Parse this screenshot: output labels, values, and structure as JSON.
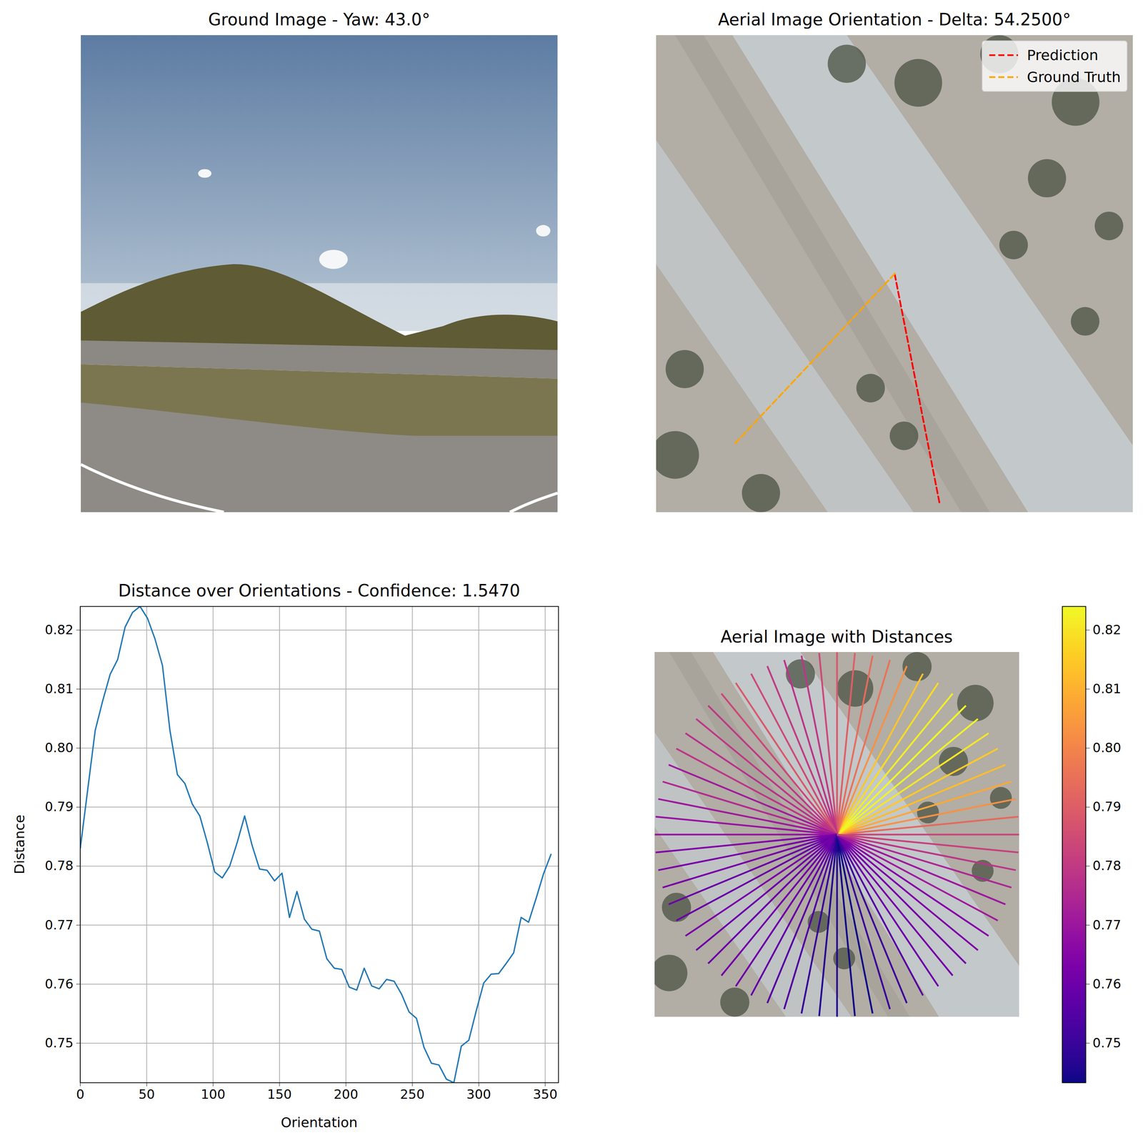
{
  "chart_data": [
    {
      "type": "image",
      "title": "Ground Image - Yaw: 43.0°",
      "tick_labels": false
    },
    {
      "type": "image",
      "title": "Aerial Image Orientation - Delta: 54.2500°",
      "tick_labels": false,
      "xlim": [
        0,
        1
      ],
      "ylim": [
        1,
        0
      ],
      "legend": "upper right",
      "series": [
        {
          "name": "Prediction",
          "color": "red",
          "line_style": "dashed",
          "x": [
            0.5,
            0.595
          ],
          "y": [
            0.5,
            0.985
          ]
        },
        {
          "name": "Ground Truth",
          "color": "orange",
          "line_style": "dashed",
          "x": [
            0.5,
            0.164
          ],
          "y": [
            0.5,
            0.857
          ]
        }
      ]
    },
    {
      "type": "line",
      "title": "Distance over Orientations - Confidence: 1.5470",
      "x_label": "Orientation",
      "y_label": "Distance",
      "color": "#1f77b4",
      "grid": true,
      "x": [
        0,
        5.625,
        11.25,
        16.875,
        22.5,
        28.125,
        33.75,
        39.375,
        45,
        50.625,
        56.25,
        61.875,
        67.5,
        73.125,
        78.75,
        84.375,
        90,
        95.625,
        101.25,
        106.875,
        112.5,
        118.125,
        123.75,
        129.375,
        135,
        140.625,
        146.25,
        151.875,
        157.5,
        163.125,
        168.75,
        174.375,
        180,
        185.625,
        191.25,
        196.875,
        202.5,
        208.125,
        213.75,
        219.375,
        225,
        230.625,
        236.25,
        241.875,
        247.5,
        253.125,
        258.75,
        264.375,
        270,
        275.625,
        281.25,
        286.875,
        292.5,
        298.125,
        303.75,
        309.375,
        315,
        320.625,
        326.25,
        331.875,
        337.5,
        343.125,
        348.75,
        354.375
      ],
      "values": [
        0.783,
        0.793,
        0.803,
        0.808,
        0.8125,
        0.815,
        0.8205,
        0.823,
        0.824,
        0.822,
        0.8185,
        0.814,
        0.803,
        0.7955,
        0.794,
        0.7905,
        0.7885,
        0.784,
        0.779,
        0.778,
        0.78,
        0.784,
        0.7885,
        0.7835,
        0.7795,
        0.7793,
        0.7775,
        0.7788,
        0.7713,
        0.7757,
        0.771,
        0.7693,
        0.769,
        0.7643,
        0.7627,
        0.7625,
        0.7595,
        0.759,
        0.7627,
        0.7597,
        0.7592,
        0.7608,
        0.7605,
        0.7583,
        0.7553,
        0.7542,
        0.7493,
        0.7466,
        0.7463,
        0.7439,
        0.7433,
        0.7495,
        0.7505,
        0.7555,
        0.7602,
        0.7617,
        0.7618,
        0.7635,
        0.7653,
        0.7713,
        0.7705,
        0.7745,
        0.7787,
        0.782
      ],
      "xlim": [
        0,
        360
      ],
      "xticks": [
        0,
        50,
        100,
        150,
        200,
        250,
        300,
        350
      ],
      "ylim": [
        0.7433,
        0.824
      ],
      "yticks": [
        0.75,
        0.76,
        0.77,
        0.78,
        0.79,
        {
          "value": 0.8,
          "label": "0.80"
        },
        0.81,
        0.82
      ]
    },
    {
      "type": "radial",
      "title": "Aerial Image with Distances",
      "tick_labels": false,
      "color": "plasma",
      "angles": [
        0,
        5.625,
        11.25,
        16.875,
        22.5,
        28.125,
        33.75,
        39.375,
        45,
        50.625,
        56.25,
        61.875,
        67.5,
        73.125,
        78.75,
        84.375,
        90,
        95.625,
        101.25,
        106.875,
        112.5,
        118.125,
        123.75,
        129.375,
        135,
        140.625,
        146.25,
        151.875,
        157.5,
        163.125,
        168.75,
        174.375,
        180,
        185.625,
        191.25,
        196.875,
        202.5,
        208.125,
        213.75,
        219.375,
        225,
        230.625,
        236.25,
        241.875,
        247.5,
        253.125,
        258.75,
        264.375,
        270,
        275.625,
        281.25,
        286.875,
        292.5,
        298.125,
        303.75,
        309.375,
        315,
        320.625,
        326.25,
        331.875,
        337.5,
        343.125,
        348.75,
        354.375
      ],
      "values": [
        0.783,
        0.793,
        0.803,
        0.808,
        0.8125,
        0.815,
        0.8205,
        0.823,
        0.824,
        0.822,
        0.8185,
        0.814,
        0.803,
        0.7955,
        0.794,
        0.7905,
        0.7885,
        0.784,
        0.779,
        0.778,
        0.78,
        0.784,
        0.7885,
        0.7835,
        0.7795,
        0.7793,
        0.7775,
        0.7788,
        0.7713,
        0.7757,
        0.771,
        0.7693,
        0.769,
        0.7643,
        0.7627,
        0.7625,
        0.7595,
        0.759,
        0.7627,
        0.7597,
        0.7592,
        0.7608,
        0.7605,
        0.7583,
        0.7553,
        0.7542,
        0.7493,
        0.7466,
        0.7463,
        0.7439,
        0.7433,
        0.7495,
        0.7505,
        0.7555,
        0.7602,
        0.7617,
        0.7618,
        0.7635,
        0.7653,
        0.7713,
        0.7705,
        0.7745,
        0.7787,
        0.782
      ],
      "colorbar": {
        "range": [
          0.7433,
          0.824
        ],
        "ticks": [
          0.75,
          0.76,
          0.77,
          0.78,
          0.79,
          {
            "value": 0.8,
            "label": "0.80"
          },
          0.81,
          0.82
        ]
      }
    }
  ]
}
